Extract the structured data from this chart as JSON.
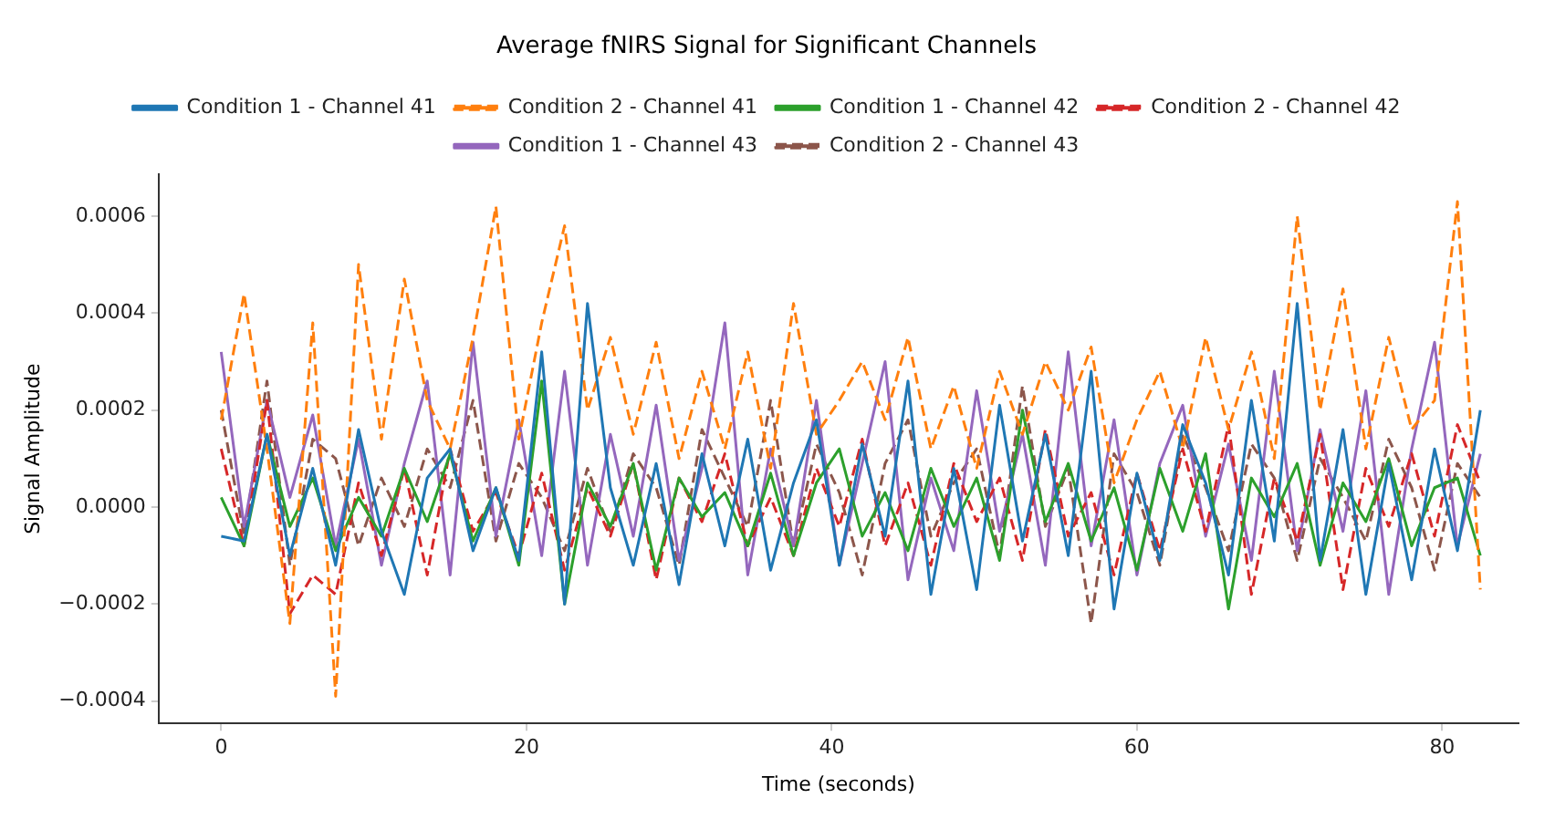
{
  "chart_data": {
    "type": "line",
    "title": "Average fNIRS Signal for Significant Channels",
    "xlabel": "Time (seconds)",
    "ylabel": "Signal Amplitude",
    "x": [
      0,
      1.5,
      3,
      4.5,
      6,
      7.5,
      9,
      10.5,
      12,
      13.5,
      15,
      16.5,
      18,
      19.5,
      21,
      22.5,
      24,
      25.5,
      27,
      28.5,
      30,
      31.5,
      33,
      34.5,
      36,
      37.5,
      39,
      40.5,
      42,
      43.5,
      45,
      46.5,
      48,
      49.5,
      51,
      52.5,
      54,
      55.5,
      57,
      58.5,
      60,
      61.5,
      63,
      64.5,
      66,
      67.5,
      69,
      70.5,
      72,
      73.5,
      75,
      76.5,
      78,
      79.5,
      81,
      82.5
    ],
    "xlim": [
      -4.1,
      85
    ],
    "xticks": [
      0,
      20,
      40,
      60,
      80
    ],
    "ylim": [
      -0.000446,
      0.000686
    ],
    "yticks": [
      {
        "value": -0.0004,
        "label": "−0.0004"
      },
      {
        "value": -0.0002,
        "label": "−0.0002"
      },
      {
        "value": 0,
        "label": "0.0000"
      },
      {
        "value": 0.0002,
        "label": "0.0002"
      },
      {
        "value": 0.0004,
        "label": "0.0004"
      },
      {
        "value": 0.0006,
        "label": "0.0006"
      }
    ],
    "grid": false,
    "legend": "top",
    "marker": "none",
    "series": [
      {
        "name": "Condition 1 - Channel 41",
        "color": "#1f77b4",
        "line_style": "solid",
        "values": [
          -6e-05,
          -7e-05,
          0.00015,
          -0.0001,
          8e-05,
          -0.00012,
          0.00016,
          -5e-05,
          -0.00018,
          6e-05,
          0.00012,
          -9e-05,
          4e-05,
          -0.00011,
          0.00032,
          -0.0002,
          0.00042,
          4e-05,
          -0.00012,
          9e-05,
          -0.00016,
          0.00011,
          -8e-05,
          0.00014,
          -0.00013,
          5e-05,
          0.00018,
          -0.00012,
          0.00013,
          -6e-05,
          0.00026,
          -0.00018,
          8e-05,
          -0.00017,
          0.00021,
          -7e-05,
          0.00015,
          -0.0001,
          0.00028,
          -0.00021,
          7e-05,
          -0.00011,
          0.00017,
          5e-05,
          -0.00014,
          0.00022,
          -7e-05,
          0.00042,
          -0.00011,
          0.00016,
          -0.00018,
          9e-05,
          -0.00015,
          0.00012,
          -9e-05,
          0.0002
        ]
      },
      {
        "name": "Condition 2 - Channel 41",
        "color": "#ff7f0e",
        "line_style": "dashed",
        "values": [
          0.00018,
          0.00044,
          0.00012,
          -0.00024,
          0.00038,
          -0.00039,
          0.0005,
          0.00014,
          0.00047,
          0.00022,
          0.00012,
          0.00035,
          0.00062,
          0.00014,
          0.00038,
          0.00058,
          0.0002,
          0.00035,
          0.00015,
          0.00034,
          0.0001,
          0.00028,
          0.00012,
          0.00032,
          8e-05,
          0.00042,
          0.00015,
          0.00022,
          0.0003,
          0.00018,
          0.00035,
          0.00012,
          0.00025,
          8e-05,
          0.00028,
          0.00015,
          0.0003,
          0.0002,
          0.00033,
          5e-05,
          0.00018,
          0.00028,
          0.00012,
          0.00035,
          0.00016,
          0.00032,
          0.0001,
          0.0006,
          0.0002,
          0.00045,
          0.00012,
          0.00035,
          0.00016,
          0.00022,
          0.00063,
          -0.00017
        ]
      },
      {
        "name": "Condition 1 - Channel 42",
        "color": "#2ca02c",
        "line_style": "solid",
        "values": [
          2e-05,
          -8e-05,
          0.00015,
          -4e-05,
          6e-05,
          -9e-05,
          2e-05,
          -6e-05,
          8e-05,
          -3e-05,
          0.00011,
          -7e-05,
          4e-05,
          -0.00012,
          0.00026,
          -0.0002,
          5e-05,
          -4e-05,
          9e-05,
          -0.00013,
          6e-05,
          -2e-05,
          3e-05,
          -8e-05,
          7e-05,
          -0.0001,
          5e-05,
          0.00012,
          -6e-05,
          3e-05,
          -9e-05,
          8e-05,
          -4e-05,
          6e-05,
          -0.00011,
          0.0002,
          -3e-05,
          9e-05,
          -7e-05,
          4e-05,
          -0.00013,
          8e-05,
          -5e-05,
          0.00011,
          -0.00021,
          6e-05,
          -2e-05,
          9e-05,
          -0.00012,
          5e-05,
          -3e-05,
          0.0001,
          -8e-05,
          4e-05,
          6e-05,
          -0.0001
        ]
      },
      {
        "name": "Condition 2 - Channel 42",
        "color": "#d62728",
        "line_style": "dashed",
        "values": [
          0.00012,
          -8e-05,
          0.00022,
          -0.00022,
          -0.00014,
          -0.00018,
          5e-05,
          -0.0001,
          8e-05,
          -0.00014,
          0.00012,
          -5e-05,
          3e-05,
          -0.0001,
          7e-05,
          -0.00013,
          4e-05,
          -6e-05,
          9e-05,
          -0.00015,
          6e-05,
          -3e-05,
          0.00011,
          -8e-05,
          2e-05,
          -0.0001,
          8e-05,
          -4e-05,
          0.00014,
          -8e-05,
          5e-05,
          -0.00012,
          9e-05,
          -3e-05,
          6e-05,
          -0.00011,
          0.00016,
          -6e-05,
          3e-05,
          -0.00014,
          7e-05,
          -9e-05,
          0.00012,
          -5e-05,
          0.00017,
          -0.00018,
          6e-05,
          -7e-05,
          0.00015,
          -0.00017,
          8e-05,
          -4e-05,
          0.00011,
          -6e-05,
          0.00017,
          5e-05
        ]
      },
      {
        "name": "Condition 1 - Channel 43",
        "color": "#9467bd",
        "line_style": "solid",
        "values": [
          0.00032,
          -4e-05,
          0.00022,
          2e-05,
          0.00019,
          -8e-05,
          0.00014,
          -0.00012,
          9e-05,
          0.00026,
          -0.00014,
          0.00034,
          -6e-05,
          0.00018,
          -0.0001,
          0.00028,
          -0.00012,
          0.00015,
          -6e-05,
          0.00021,
          -0.00011,
          8e-05,
          0.00038,
          -0.00014,
          0.00012,
          -8e-05,
          0.00022,
          -0.00012,
          9e-05,
          0.0003,
          -0.00015,
          6e-05,
          -9e-05,
          0.00024,
          -5e-05,
          0.00015,
          -0.00012,
          0.00032,
          -8e-05,
          0.00018,
          -0.00014,
          9e-05,
          0.00021,
          -6e-05,
          0.00013,
          -0.00011,
          0.00028,
          -9e-05,
          0.00016,
          -5e-05,
          0.00024,
          -0.00018,
          0.00012,
          0.00034,
          -8e-05,
          0.00011
        ]
      },
      {
        "name": "Condition 2 - Channel 43",
        "color": "#8c564b",
        "line_style": "dashed",
        "values": [
          0.0002,
          -6e-05,
          0.00026,
          -0.00012,
          0.00014,
          0.0001,
          -8e-05,
          6e-05,
          -4e-05,
          0.00012,
          4e-05,
          0.00022,
          -7e-05,
          9e-05,
          2e-05,
          -9e-05,
          8e-05,
          -5e-05,
          0.00011,
          4e-05,
          -0.00012,
          0.00016,
          6e-05,
          -4e-05,
          0.00022,
          -8e-05,
          0.00013,
          3e-05,
          -0.00014,
          9e-05,
          0.00018,
          -6e-05,
          5e-05,
          0.00012,
          -0.0001,
          0.00025,
          -4e-05,
          8e-05,
          -0.00024,
          0.00011,
          3e-05,
          -0.00012,
          0.00015,
          4e-05,
          -9e-05,
          0.00013,
          6e-05,
          -0.00011,
          0.0001,
          2e-05,
          -7e-05,
          0.00014,
          4e-05,
          -0.00013,
          9e-05,
          2e-05
        ]
      }
    ]
  }
}
